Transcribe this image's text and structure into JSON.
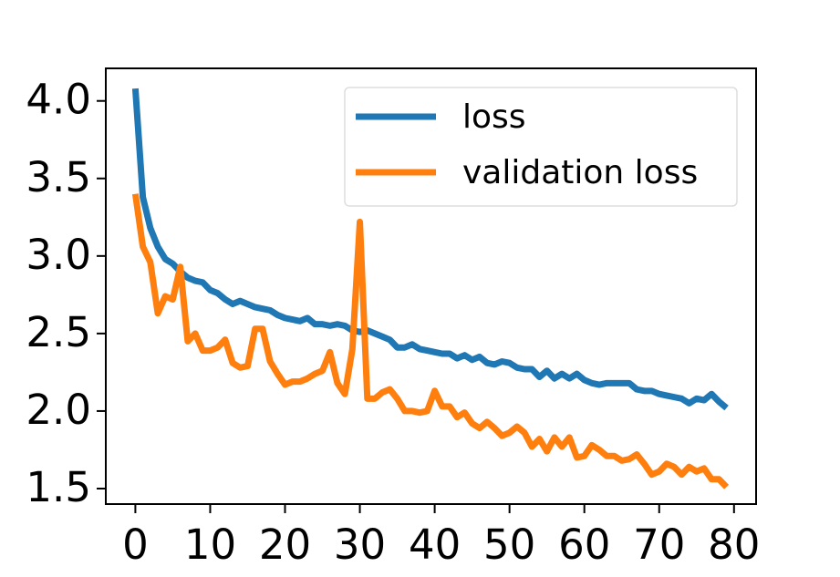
{
  "chart_data": {
    "type": "line",
    "x": [
      0,
      1,
      2,
      3,
      4,
      5,
      6,
      7,
      8,
      9,
      10,
      11,
      12,
      13,
      14,
      15,
      16,
      17,
      18,
      19,
      20,
      21,
      22,
      23,
      24,
      25,
      26,
      27,
      28,
      29,
      30,
      31,
      32,
      33,
      34,
      35,
      36,
      37,
      38,
      39,
      40,
      41,
      42,
      43,
      44,
      45,
      46,
      47,
      48,
      49,
      50,
      51,
      52,
      53,
      54,
      55,
      56,
      57,
      58,
      59,
      60,
      61,
      62,
      63,
      64,
      65,
      66,
      67,
      68,
      69,
      70,
      71,
      72,
      73,
      74,
      75,
      76,
      77,
      78,
      79
    ],
    "series": [
      {
        "name": "loss",
        "color": "#1f77b4",
        "values": [
          4.08,
          3.38,
          3.18,
          3.06,
          2.98,
          2.95,
          2.9,
          2.86,
          2.84,
          2.83,
          2.78,
          2.76,
          2.72,
          2.69,
          2.71,
          2.69,
          2.67,
          2.66,
          2.65,
          2.62,
          2.6,
          2.59,
          2.58,
          2.6,
          2.56,
          2.56,
          2.55,
          2.56,
          2.55,
          2.52,
          2.51,
          2.52,
          2.5,
          2.48,
          2.46,
          2.41,
          2.41,
          2.43,
          2.4,
          2.39,
          2.38,
          2.37,
          2.37,
          2.34,
          2.36,
          2.33,
          2.35,
          2.31,
          2.3,
          2.32,
          2.31,
          2.28,
          2.27,
          2.27,
          2.22,
          2.26,
          2.21,
          2.24,
          2.21,
          2.24,
          2.2,
          2.18,
          2.17,
          2.18,
          2.18,
          2.18,
          2.18,
          2.14,
          2.13,
          2.13,
          2.11,
          2.1,
          2.09,
          2.08,
          2.05,
          2.08,
          2.07,
          2.11,
          2.06,
          2.02
        ]
      },
      {
        "name": "validation loss",
        "color": "#ff7f0e",
        "values": [
          3.4,
          3.06,
          2.96,
          2.63,
          2.74,
          2.72,
          2.93,
          2.45,
          2.5,
          2.39,
          2.39,
          2.41,
          2.46,
          2.31,
          2.28,
          2.29,
          2.53,
          2.53,
          2.32,
          2.24,
          2.17,
          2.19,
          2.19,
          2.21,
          2.24,
          2.26,
          2.38,
          2.18,
          2.11,
          2.4,
          3.22,
          2.08,
          2.08,
          2.12,
          2.14,
          2.08,
          2.0,
          2.0,
          1.99,
          2.0,
          2.13,
          2.03,
          2.03,
          1.96,
          1.99,
          1.92,
          1.89,
          1.93,
          1.89,
          1.84,
          1.86,
          1.9,
          1.86,
          1.77,
          1.82,
          1.74,
          1.83,
          1.77,
          1.83,
          1.7,
          1.71,
          1.78,
          1.75,
          1.71,
          1.71,
          1.68,
          1.69,
          1.72,
          1.66,
          1.59,
          1.61,
          1.66,
          1.64,
          1.59,
          1.64,
          1.61,
          1.63,
          1.56,
          1.56,
          1.51
        ]
      }
    ],
    "xlim": [
      -3.95,
      82.95
    ],
    "xticks": [
      0,
      10,
      20,
      30,
      40,
      50,
      60,
      70,
      80
    ],
    "ylim": [
      1.4,
      4.21
    ],
    "yticks": [
      1.5,
      {
        "value": 2,
        "label": "2.0"
      },
      2.5,
      {
        "value": 3,
        "label": "3.0"
      },
      3.5,
      {
        "value": 4,
        "label": "4.0"
      }
    ],
    "legend": "upper right",
    "grid": false
  }
}
